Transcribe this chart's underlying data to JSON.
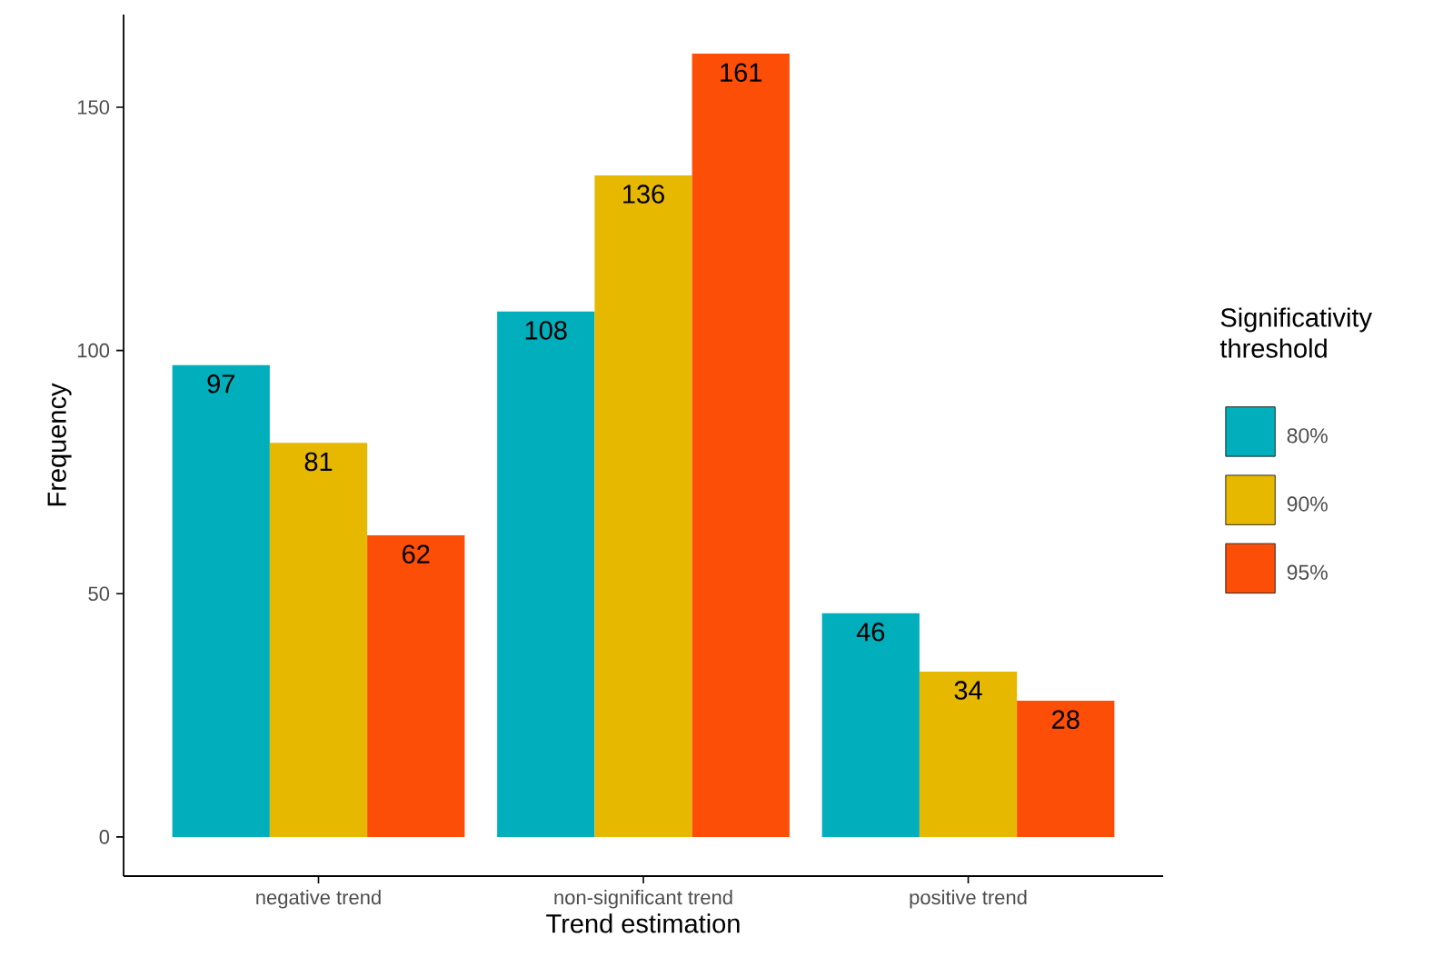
{
  "chart_data": {
    "type": "bar",
    "xlabel": "Trend estimation",
    "ylabel": "Frequency",
    "legend_title": "Significativity threshold",
    "legend": "right",
    "data_labels": true,
    "categories": [
      "negative trend",
      "non-significant trend",
      "positive trend"
    ],
    "series": [
      {
        "name": "80%",
        "color": "#00afbb",
        "values": [
          97,
          108,
          46
        ]
      },
      {
        "name": "90%",
        "color": "#e7b800",
        "values": [
          81,
          136,
          34
        ]
      },
      {
        "name": "95%",
        "color": "#fc4e07",
        "values": [
          62,
          161,
          28
        ]
      }
    ],
    "ylim": [
      -8.05,
      169.05
    ],
    "yticks": [
      0,
      50,
      100,
      150
    ]
  }
}
